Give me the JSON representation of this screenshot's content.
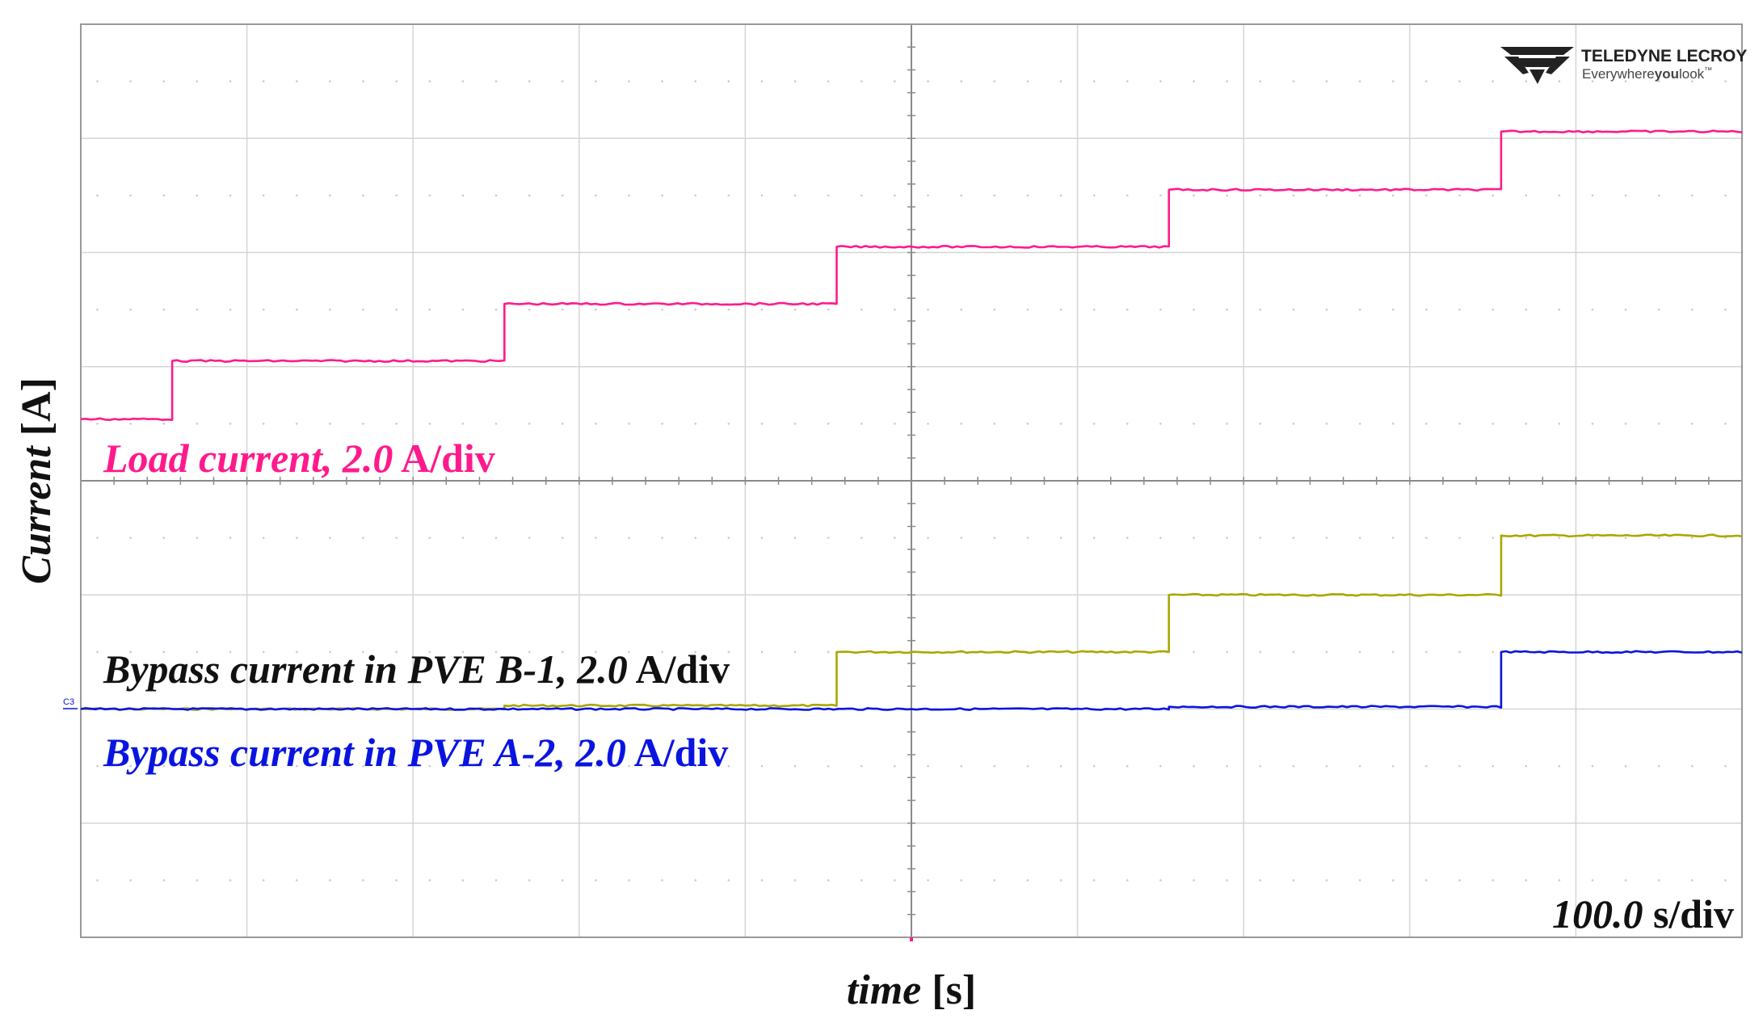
{
  "chart_data": {
    "type": "line",
    "title": "",
    "xlabel": {
      "italic": "time",
      "unit": "[s]"
    },
    "ylabel": {
      "italic": "Current",
      "unit": "[A]"
    },
    "grid": true,
    "divisions": {
      "x": 10,
      "y": 8
    },
    "xlim_div": [
      0,
      10
    ],
    "ylim_div": [
      -4,
      4
    ],
    "timebase": {
      "value": "100.0",
      "unit": "s/div"
    },
    "channel_marker": "C3",
    "series": [
      {
        "name": "Load current",
        "label": {
          "italic": "Load current, 2.0",
          "unit": "A/div"
        },
        "color": "#ff1a8c",
        "x_div": [
          0,
          0.55,
          0.55,
          2.55,
          2.55,
          4.55,
          4.55,
          6.55,
          6.55,
          8.55,
          8.55,
          10
        ],
        "y_div": [
          0.54,
          0.54,
          1.05,
          1.05,
          1.55,
          1.55,
          2.05,
          2.05,
          2.55,
          2.55,
          3.06,
          3.06
        ]
      },
      {
        "name": "Bypass current in PVE B-1",
        "label": {
          "italic": "Bypass current in PVE B-1, 2.0",
          "unit": "A/div"
        },
        "color": "#a8a800",
        "x_div": [
          0,
          2.55,
          2.55,
          4.55,
          4.55,
          6.55,
          6.55,
          8.55,
          8.55,
          10
        ],
        "y_div": [
          -2.0,
          -2.0,
          -1.97,
          -1.97,
          -1.5,
          -1.5,
          -1.0,
          -1.0,
          -0.48,
          -0.48
        ]
      },
      {
        "name": "Bypass current in PVE A-2",
        "label": {
          "italic": "Bypass current in PVE A-2, 2.0",
          "unit": "A/div"
        },
        "color": "#0a14e0",
        "x_div": [
          0,
          6.55,
          6.55,
          8.55,
          8.55,
          10
        ],
        "y_div": [
          -2.0,
          -2.0,
          -1.98,
          -1.98,
          -1.5,
          -1.5
        ]
      }
    ]
  },
  "logo": {
    "brand": "TELEDYNE LECROY",
    "tagline_pre": "Everywhere",
    "tagline_bold": "you",
    "tagline_post": "look",
    "trademark": "™"
  }
}
